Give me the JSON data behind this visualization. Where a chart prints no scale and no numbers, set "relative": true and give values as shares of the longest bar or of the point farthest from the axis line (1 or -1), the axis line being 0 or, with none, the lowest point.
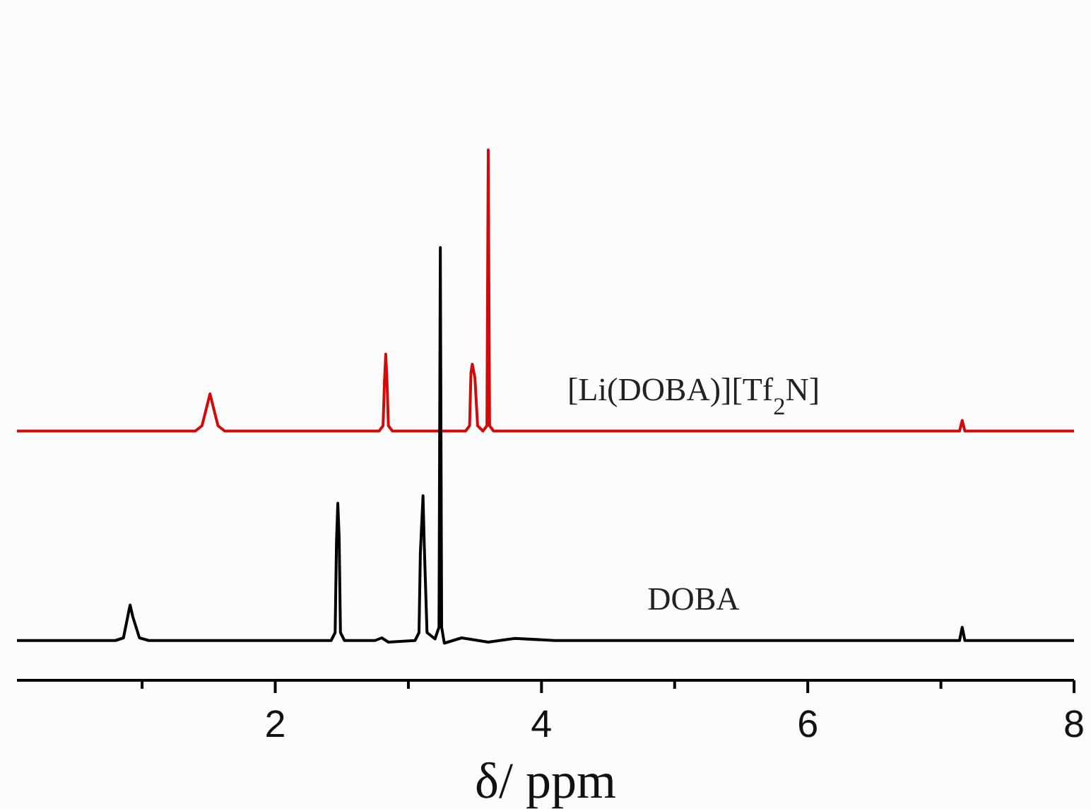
{
  "chart_data": {
    "type": "line",
    "relative": true,
    "xlabel": "δ/ ppm",
    "xlim": [
      0.06,
      8
    ],
    "xticks": [
      {
        "value": 1,
        "label": null
      },
      2,
      {
        "value": 3,
        "label": null
      },
      4,
      {
        "value": 5,
        "label": null
      },
      6,
      {
        "value": 7,
        "label": null
      },
      8
    ],
    "grid": false,
    "marker": "none",
    "line_style": "solid",
    "tick_labels": "x",
    "series": [
      {
        "name": "[Li(DOBA)][Tf$_{2}$N]",
        "color": "#d10a0a",
        "x": [
          0.06,
          1.4,
          1.45,
          1.49,
          1.51,
          1.53,
          1.57,
          1.62,
          2.78,
          2.81,
          2.82,
          2.83,
          2.84,
          2.85,
          2.88,
          3.43,
          3.46,
          3.47,
          3.48,
          3.5,
          3.52,
          3.56,
          3.59,
          3.6,
          3.61,
          3.64,
          7.14,
          7.16,
          7.18,
          8
        ],
        "values": [
          0.47,
          0.47,
          0.48,
          0.52,
          0.54,
          0.52,
          0.48,
          0.47,
          0.47,
          0.48,
          0.56,
          0.615,
          0.56,
          0.48,
          0.47,
          0.47,
          0.48,
          0.58,
          0.596,
          0.57,
          0.48,
          0.47,
          0.48,
          1,
          0.48,
          0.47,
          0.47,
          0.49,
          0.47,
          0.47
        ]
      },
      {
        "name": "DOBA",
        "color": "#000000",
        "x": [
          0.06,
          0.8,
          0.86,
          0.9,
          0.91,
          0.93,
          0.98,
          1.05,
          2.42,
          2.45,
          2.46,
          2.47,
          2.48,
          2.49,
          2.52,
          2.75,
          2.8,
          2.85,
          3.05,
          3.08,
          3.09,
          3.11,
          3.12,
          3.14,
          3.2,
          3.23,
          3.24,
          3.25,
          3.27,
          3.4,
          3.6,
          3.8,
          4.1,
          7.14,
          7.16,
          7.18,
          8
        ],
        "values": [
          0.075,
          0.075,
          0.08,
          0.13,
          0.142,
          0.12,
          0.08,
          0.075,
          0.075,
          0.09,
          0.26,
          0.334,
          0.27,
          0.09,
          0.075,
          0.075,
          0.08,
          0.072,
          0.075,
          0.09,
          0.24,
          0.348,
          0.25,
          0.09,
          0.078,
          0.1,
          0.816,
          0.1,
          0.07,
          0.08,
          0.072,
          0.079,
          0.075,
          0.075,
          0.1,
          0.075,
          0.075
        ]
      }
    ]
  }
}
